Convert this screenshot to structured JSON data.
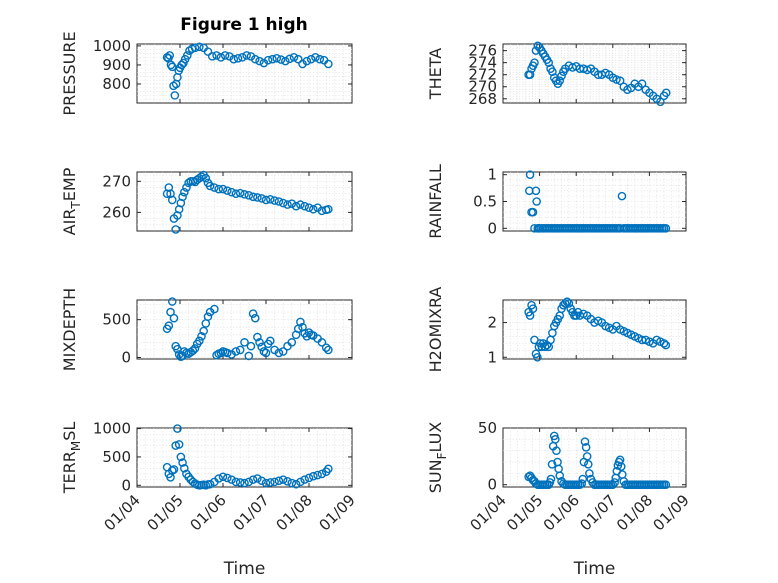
{
  "figure_title": "Figure 1 high",
  "colors": {
    "marker": "#0072BD",
    "axis": "#262626",
    "grid": "#d9d9d9"
  },
  "chart_data": [
    {
      "type": "scatter",
      "title": "Figure 1 high",
      "ylabel": "PRESSURE",
      "xlabel": "",
      "xlim": [
        "01/04",
        "01/09"
      ],
      "ylim": [
        700,
        1010
      ],
      "yticks": [
        800,
        900,
        1000
      ],
      "xtick_labels": [],
      "grid": "minor-dotted",
      "x": [
        4.7,
        4.73,
        4.76,
        4.79,
        4.82,
        4.85,
        4.88,
        4.91,
        4.94,
        4.97,
        5.0,
        5.04,
        5.08,
        5.12,
        5.17,
        5.22,
        5.28,
        5.35,
        5.45,
        5.55,
        5.65,
        5.75,
        5.85,
        5.95,
        6.05,
        6.15,
        6.25,
        6.35,
        6.45,
        6.55,
        6.65,
        6.75,
        6.85,
        6.95,
        7.05,
        7.15,
        7.25,
        7.35,
        7.45,
        7.55,
        7.65,
        7.75,
        7.85,
        7.95,
        8.05,
        8.15,
        8.25,
        8.35,
        8.45
      ],
      "y": [
        940,
        935,
        950,
        900,
        890,
        790,
        740,
        800,
        835,
        870,
        885,
        900,
        910,
        930,
        950,
        975,
        985,
        990,
        995,
        990,
        970,
        945,
        950,
        940,
        950,
        945,
        930,
        935,
        940,
        950,
        945,
        930,
        920,
        910,
        925,
        930,
        935,
        928,
        920,
        932,
        940,
        930,
        905,
        920,
        930,
        940,
        930,
        925,
        905
      ]
    },
    {
      "type": "scatter",
      "title": "",
      "ylabel": "THETA",
      "xlabel": "",
      "xlim": [
        "01/04",
        "01/09"
      ],
      "ylim": [
        267.3,
        277.1
      ],
      "yticks": [
        268,
        270,
        272,
        274,
        276
      ],
      "xtick_labels": [],
      "grid": "minor-dotted",
      "x": [
        4.7,
        4.74,
        4.78,
        4.82,
        4.86,
        4.9,
        4.95,
        5.0,
        5.05,
        5.1,
        5.15,
        5.2,
        5.25,
        5.3,
        5.35,
        5.4,
        5.45,
        5.5,
        5.55,
        5.6,
        5.65,
        5.7,
        5.8,
        5.9,
        6.0,
        6.1,
        6.2,
        6.3,
        6.4,
        6.5,
        6.6,
        6.7,
        6.8,
        6.9,
        7.0,
        7.1,
        7.2,
        7.3,
        7.4,
        7.5,
        7.6,
        7.7,
        7.8,
        7.9,
        8.0,
        8.1,
        8.2,
        8.3,
        8.4,
        8.46
      ],
      "y": [
        272,
        272,
        273,
        273.5,
        274,
        276,
        276.8,
        276.5,
        276,
        275.5,
        275,
        274.5,
        274,
        273,
        272.5,
        271.5,
        271,
        270.5,
        271,
        271.8,
        272.5,
        273,
        273.5,
        273.2,
        273.4,
        273,
        273,
        272.8,
        273,
        272.5,
        272,
        272,
        272.3,
        272,
        271.5,
        271.2,
        271,
        270,
        269.5,
        269.8,
        270.5,
        270,
        270.5,
        269.5,
        269,
        268.5,
        268,
        267.5,
        268.5,
        269
      ]
    },
    {
      "type": "scatter",
      "title": "",
      "ylabel": "AIR_TEMP",
      "xlabel": "",
      "xlim": [
        "01/04",
        "01/09"
      ],
      "ylim": [
        254,
        273
      ],
      "yticks": [
        260,
        270
      ],
      "xtick_labels": [],
      "grid": "minor-dotted",
      "x": [
        4.7,
        4.74,
        4.78,
        4.82,
        4.86,
        4.9,
        4.94,
        4.98,
        5.02,
        5.06,
        5.1,
        5.15,
        5.2,
        5.25,
        5.3,
        5.35,
        5.4,
        5.45,
        5.5,
        5.55,
        5.6,
        5.65,
        5.7,
        5.8,
        5.9,
        6.0,
        6.1,
        6.2,
        6.3,
        6.4,
        6.5,
        6.6,
        6.7,
        6.8,
        6.9,
        7.0,
        7.1,
        7.2,
        7.3,
        7.4,
        7.5,
        7.6,
        7.7,
        7.8,
        7.9,
        8.0,
        8.1,
        8.2,
        8.3,
        8.4,
        8.45
      ],
      "y": [
        266,
        268,
        266,
        264,
        258,
        254.5,
        259,
        261,
        263,
        265,
        266.5,
        268,
        269.5,
        270,
        270,
        269.8,
        270.5,
        271,
        271.5,
        272,
        271,
        269.5,
        268.5,
        268,
        267.5,
        267.5,
        267,
        266.5,
        266,
        266.2,
        265.8,
        265.5,
        265,
        264.8,
        264.5,
        264,
        264.2,
        263.8,
        263.5,
        263,
        262.5,
        262.8,
        262,
        262.5,
        262,
        261.5,
        261,
        261.5,
        260.5,
        260.8,
        261
      ]
    },
    {
      "type": "scatter",
      "title": "",
      "ylabel": "RAINFALL",
      "xlabel": "",
      "xlim": [
        "01/04",
        "01/09"
      ],
      "ylim": [
        -0.05,
        1.05
      ],
      "yticks": [
        0,
        0.5,
        1
      ],
      "xtick_labels": [],
      "grid": "minor-dotted",
      "x": [
        4.72,
        4.74,
        4.78,
        4.82,
        4.86,
        4.9,
        4.92,
        4.95,
        4.97,
        5.0,
        5.05,
        5.1,
        5.15,
        5.2,
        5.25,
        5.3,
        5.35,
        5.4,
        5.45,
        5.5,
        5.55,
        5.6,
        5.65,
        5.7,
        5.75,
        5.8,
        5.85,
        5.9,
        5.95,
        6.0,
        6.05,
        6.1,
        6.15,
        6.2,
        6.25,
        6.3,
        6.35,
        6.4,
        6.45,
        6.5,
        6.55,
        6.6,
        6.65,
        6.7,
        6.75,
        6.8,
        6.85,
        6.9,
        6.95,
        7.0,
        7.05,
        7.1,
        7.15,
        7.2,
        7.25,
        7.3,
        7.35,
        7.4,
        7.45,
        7.5,
        7.55,
        7.6,
        7.65,
        7.7,
        7.75,
        7.8,
        7.85,
        7.9,
        7.95,
        8.0,
        8.05,
        8.1,
        8.15,
        8.2,
        8.25,
        8.3,
        8.35,
        8.4,
        8.45
      ],
      "y": [
        0.7,
        1.0,
        0.3,
        0.3,
        0.0,
        0.7,
        0.5,
        0.0,
        0.0,
        0.0,
        0.0,
        0.0,
        0.0,
        0.0,
        0.0,
        0.0,
        0.0,
        0.0,
        0.0,
        0.0,
        0.0,
        0.0,
        0.0,
        0.0,
        0.0,
        0.0,
        0.0,
        0.0,
        0.0,
        0.0,
        0.0,
        0.0,
        0.0,
        0.0,
        0.0,
        0.0,
        0.0,
        0.0,
        0.0,
        0.0,
        0.0,
        0.0,
        0.0,
        0.0,
        0.0,
        0.0,
        0.0,
        0.0,
        0.0,
        0.0,
        0.0,
        0.0,
        0.0,
        0.0,
        0.6,
        0.0,
        0.0,
        0.0,
        0.0,
        0.0,
        0.0,
        0.0,
        0.0,
        0.0,
        0.0,
        0.0,
        0.0,
        0.0,
        0.0,
        0.0,
        0.0,
        0.0,
        0.0,
        0.0,
        0.0,
        0.0,
        0.0,
        0.0,
        0.0
      ]
    },
    {
      "type": "scatter",
      "title": "",
      "ylabel": "MIXDEPTH",
      "xlabel": "",
      "xlim": [
        "01/04",
        "01/09"
      ],
      "ylim": [
        -20,
        760
      ],
      "yticks": [
        0,
        500
      ],
      "xtick_labels": [],
      "grid": "minor-dotted",
      "x": [
        4.7,
        4.74,
        4.78,
        4.82,
        4.86,
        4.9,
        4.94,
        4.98,
        5.02,
        5.06,
        5.1,
        5.15,
        5.2,
        5.25,
        5.3,
        5.35,
        5.4,
        5.45,
        5.5,
        5.55,
        5.6,
        5.65,
        5.7,
        5.8,
        5.85,
        5.9,
        5.95,
        6.0,
        6.05,
        6.1,
        6.2,
        6.3,
        6.4,
        6.5,
        6.6,
        6.65,
        6.7,
        6.75,
        6.8,
        6.85,
        6.9,
        6.95,
        7.0,
        7.05,
        7.1,
        7.2,
        7.3,
        7.4,
        7.5,
        7.6,
        7.7,
        7.75,
        7.8,
        7.85,
        7.9,
        7.95,
        8.0,
        8.05,
        8.1,
        8.2,
        8.3,
        8.4,
        8.45
      ],
      "y": [
        380,
        420,
        600,
        740,
        520,
        150,
        110,
        40,
        10,
        20,
        80,
        60,
        50,
        70,
        90,
        120,
        180,
        220,
        280,
        350,
        450,
        540,
        600,
        640,
        30,
        50,
        60,
        80,
        70,
        60,
        40,
        80,
        100,
        200,
        20,
        150,
        580,
        520,
        270,
        200,
        140,
        80,
        60,
        180,
        220,
        100,
        60,
        80,
        150,
        200,
        300,
        380,
        470,
        400,
        320,
        280,
        330,
        300,
        290,
        250,
        200,
        130,
        100
      ]
    },
    {
      "type": "scatter",
      "title": "",
      "ylabel": "H2OMIXRA",
      "xlabel": "",
      "xlim": [
        "01/04",
        "01/09"
      ],
      "ylim": [
        0.95,
        2.65
      ],
      "yticks": [
        1,
        2
      ],
      "xtick_labels": [],
      "grid": "minor-dotted",
      "x": [
        4.7,
        4.74,
        4.78,
        4.82,
        4.86,
        4.9,
        4.94,
        4.98,
        5.02,
        5.06,
        5.1,
        5.15,
        5.2,
        5.25,
        5.3,
        5.35,
        5.4,
        5.45,
        5.5,
        5.55,
        5.6,
        5.65,
        5.7,
        5.75,
        5.8,
        5.85,
        5.9,
        5.95,
        6.0,
        6.05,
        6.1,
        6.2,
        6.3,
        6.4,
        6.5,
        6.6,
        6.7,
        6.8,
        6.9,
        7.0,
        7.1,
        7.2,
        7.3,
        7.4,
        7.5,
        7.6,
        7.7,
        7.8,
        7.9,
        8.0,
        8.1,
        8.2,
        8.3,
        8.4,
        8.45
      ],
      "y": [
        2.3,
        2.2,
        2.5,
        2.4,
        1.5,
        1.1,
        1.0,
        1.3,
        1.4,
        1.3,
        1.4,
        1.3,
        1.35,
        1.3,
        1.5,
        1.7,
        1.9,
        2.0,
        2.1,
        2.2,
        2.4,
        2.5,
        2.55,
        2.6,
        2.55,
        2.4,
        2.3,
        2.2,
        2.2,
        2.3,
        2.2,
        2.25,
        2.2,
        2.1,
        2.0,
        2.05,
        2.0,
        1.9,
        1.85,
        1.8,
        1.9,
        1.8,
        1.75,
        1.7,
        1.65,
        1.6,
        1.55,
        1.5,
        1.5,
        1.45,
        1.4,
        1.5,
        1.45,
        1.4,
        1.35
      ]
    },
    {
      "type": "scatter",
      "title": "",
      "ylabel": "TERR_MSL",
      "xlabel": "Time",
      "xlim": [
        "01/04",
        "01/09"
      ],
      "ylim": [
        -30,
        1010
      ],
      "yticks": [
        0,
        500,
        1000
      ],
      "xtick_labels": [
        "01/04",
        "01/05",
        "01/06",
        "01/07",
        "01/08",
        "01/09"
      ],
      "grid": "minor-dotted",
      "x": [
        4.7,
        4.74,
        4.78,
        4.82,
        4.86,
        4.9,
        4.94,
        4.98,
        5.02,
        5.06,
        5.1,
        5.15,
        5.2,
        5.25,
        5.3,
        5.35,
        5.4,
        5.45,
        5.5,
        5.55,
        5.6,
        5.65,
        5.7,
        5.8,
        5.9,
        6.0,
        6.1,
        6.2,
        6.3,
        6.4,
        6.5,
        6.6,
        6.7,
        6.8,
        6.9,
        7.0,
        7.1,
        7.2,
        7.3,
        7.4,
        7.5,
        7.6,
        7.7,
        7.8,
        7.9,
        8.0,
        8.1,
        8.2,
        8.3,
        8.4,
        8.45
      ],
      "y": [
        320,
        200,
        140,
        260,
        280,
        700,
        1000,
        720,
        500,
        400,
        300,
        200,
        150,
        100,
        60,
        30,
        10,
        0,
        5,
        10,
        0,
        15,
        20,
        60,
        120,
        150,
        130,
        100,
        60,
        50,
        40,
        60,
        100,
        120,
        80,
        40,
        50,
        60,
        80,
        100,
        70,
        40,
        20,
        60,
        100,
        130,
        160,
        180,
        200,
        240,
        290
      ]
    },
    {
      "type": "scatter",
      "title": "",
      "ylabel": "SUN_FLUX",
      "xlabel": "Time",
      "xlim": [
        "01/04",
        "01/09"
      ],
      "ylim": [
        -2,
        50
      ],
      "yticks": [
        0,
        50
      ],
      "xtick_labels": [
        "01/04",
        "01/05",
        "01/06",
        "01/07",
        "01/08",
        "01/09"
      ],
      "grid": "minor-dotted",
      "x": [
        4.7,
        4.74,
        4.78,
        4.82,
        4.86,
        4.9,
        4.95,
        5.0,
        5.05,
        5.1,
        5.15,
        5.2,
        5.25,
        5.28,
        5.31,
        5.34,
        5.37,
        5.4,
        5.43,
        5.46,
        5.49,
        5.52,
        5.55,
        5.6,
        5.65,
        5.7,
        5.75,
        5.8,
        5.85,
        5.9,
        5.95,
        6.0,
        6.05,
        6.1,
        6.15,
        6.18,
        6.21,
        6.24,
        6.27,
        6.3,
        6.33,
        6.36,
        6.4,
        6.45,
        6.5,
        6.55,
        6.6,
        6.65,
        6.7,
        6.75,
        6.8,
        6.85,
        6.9,
        6.95,
        7.0,
        7.05,
        7.08,
        7.11,
        7.14,
        7.17,
        7.2,
        7.23,
        7.26,
        7.3,
        7.35,
        7.4,
        7.45,
        7.5,
        7.55,
        7.6,
        7.65,
        7.7,
        7.75,
        7.8,
        7.85,
        7.9,
        7.95,
        8.0,
        8.05,
        8.1,
        8.15,
        8.2,
        8.25,
        8.3,
        8.35,
        8.4,
        8.45
      ],
      "y": [
        7,
        8,
        6,
        4,
        3,
        1,
        0,
        0,
        0,
        0,
        0,
        0,
        0,
        2,
        5,
        18,
        34,
        43,
        40,
        30,
        20,
        14,
        8,
        3,
        1,
        0,
        0,
        0,
        0,
        0,
        0,
        0,
        0,
        0,
        1,
        5,
        20,
        38,
        33,
        25,
        18,
        10,
        5,
        2,
        0,
        0,
        0,
        0,
        0,
        0,
        0,
        0,
        0,
        0,
        0,
        2,
        6,
        12,
        17,
        20,
        22,
        16,
        9,
        3,
        0,
        0,
        0,
        0,
        0,
        0,
        0,
        0,
        0,
        0,
        0,
        0,
        0,
        0,
        0,
        0,
        0,
        0,
        0,
        0,
        0,
        0,
        0
      ]
    }
  ]
}
